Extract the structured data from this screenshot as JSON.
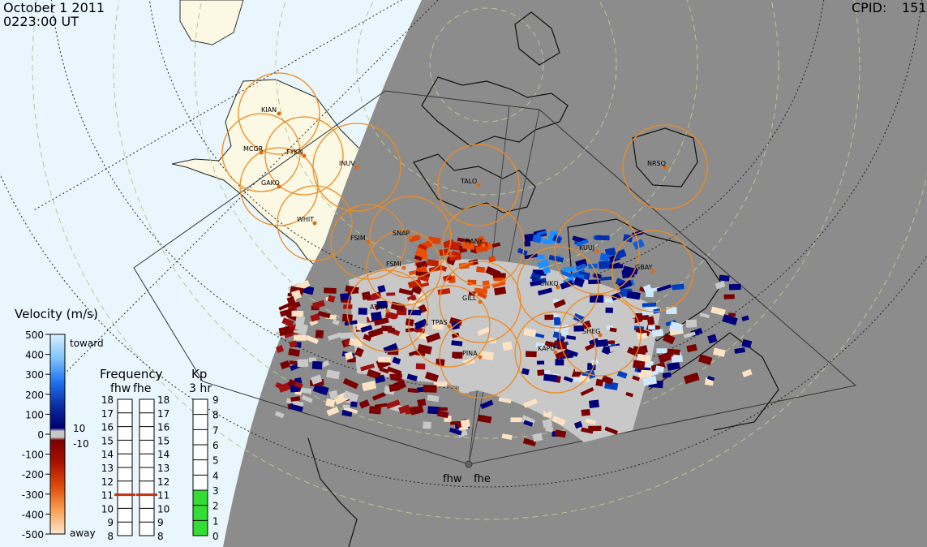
{
  "header": {
    "date": "October  1 2011",
    "time": "0223:00 UT",
    "cpid_label": "CPID:",
    "cpid_value": "151"
  },
  "stations": [
    {
      "label": "KIAN"
    },
    {
      "label": "MCGR"
    },
    {
      "label": "FYKN"
    },
    {
      "label": "INUV"
    },
    {
      "label": "GAKO"
    },
    {
      "label": "WHIT"
    },
    {
      "label": "FSIM"
    },
    {
      "label": "SNAP"
    },
    {
      "label": "FSMI"
    },
    {
      "label": "RANK"
    },
    {
      "label": "TALO"
    },
    {
      "label": "NRSQ"
    },
    {
      "label": "KUUJ"
    },
    {
      "label": "GBAY"
    },
    {
      "label": "SNKQ"
    },
    {
      "label": "GILL"
    },
    {
      "label": "ATHA"
    },
    {
      "label": "TPAS"
    },
    {
      "label": "PINA"
    },
    {
      "label": "KAPU"
    },
    {
      "label": "SHEG"
    }
  ],
  "radars": {
    "west": "fhw",
    "east": "fhe"
  },
  "velocity_scale": {
    "title": "Velocity (m/s)",
    "toward": "toward",
    "away": "away",
    "ticks": [
      "500",
      "400",
      "300",
      "200",
      "100",
      "0",
      "-100",
      "-200",
      "-300",
      "-400",
      "-500"
    ],
    "extra_pos": "10",
    "extra_neg": "-10",
    "colors": {
      "toward_light": "#cfe9fb",
      "toward_mid": "#1e90ff",
      "toward_dark": "#00007a",
      "ground": "#c8c8c8",
      "away_dark": "#7a0000",
      "away_mid": "#e8500a",
      "away_light": "#fde3c4"
    }
  },
  "frequency_scale": {
    "title": "Frequency",
    "subtitle_w": "fhw",
    "subtitle_e": "fhe",
    "ticks": [
      "18",
      "17",
      "16",
      "15",
      "14",
      "13",
      "12",
      "11",
      "10",
      "9",
      "8"
    ],
    "fhw_mhz": 11,
    "fhe_mhz": 11
  },
  "kp_scale": {
    "title": "Kp",
    "subtitle": "3 hr",
    "ticks": [
      "9",
      "8",
      "7",
      "6",
      "5",
      "4",
      "3",
      "2",
      "1",
      "0"
    ],
    "kp_value": 3
  }
}
